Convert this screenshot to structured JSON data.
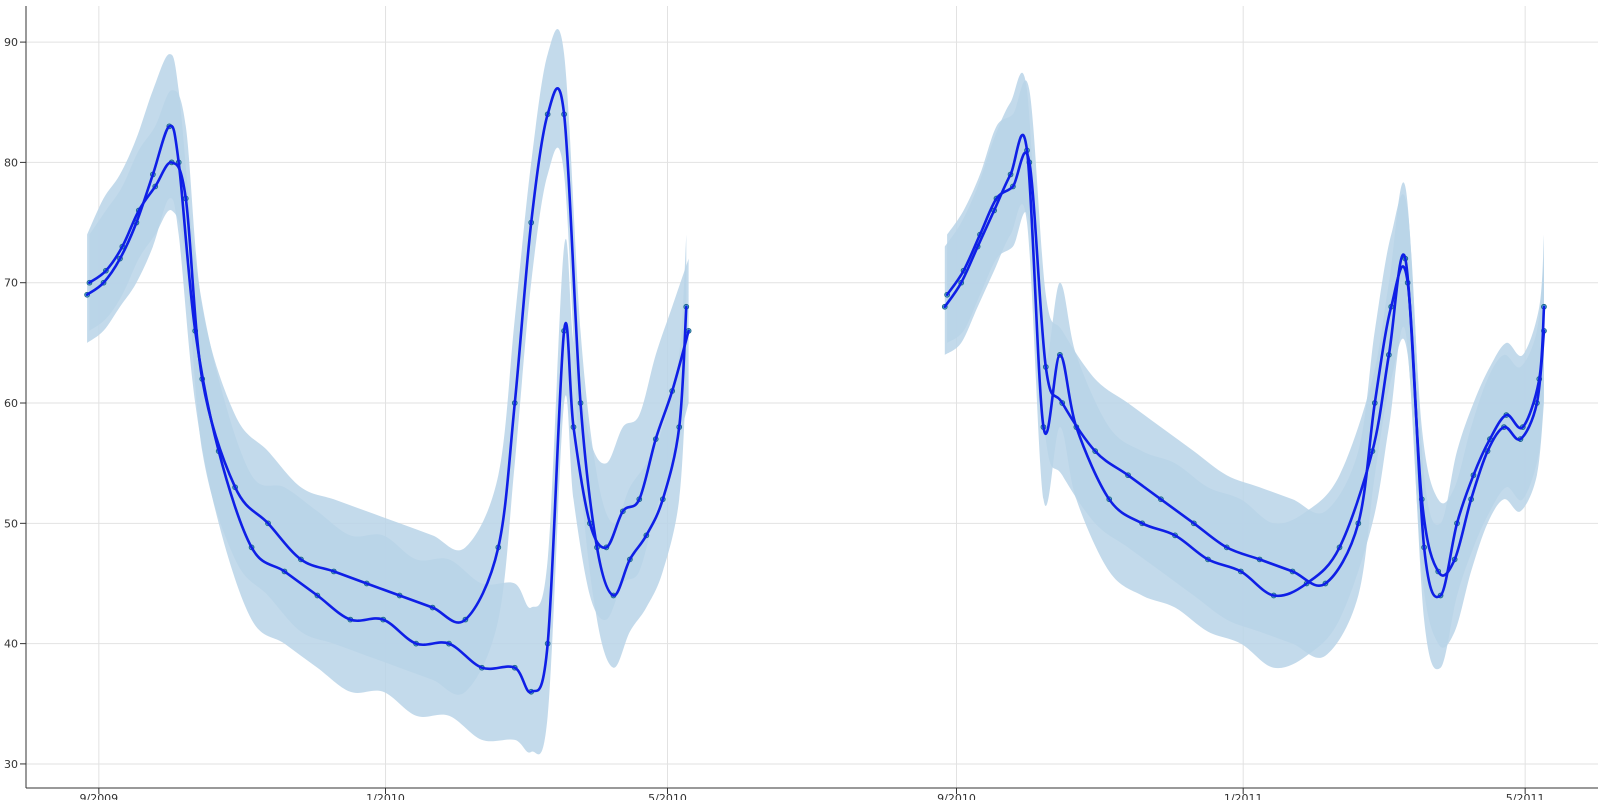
{
  "chart_data": {
    "type": "line",
    "title": "",
    "xlabel": "",
    "ylabel": "",
    "xlim": [
      "2009-08-01",
      "2011-06-01"
    ],
    "ylim": [
      28,
      93
    ],
    "grid": true,
    "x_ticks": [
      {
        "date": "2009-09-01",
        "label": "9/2009"
      },
      {
        "date": "2010-01-01",
        "label": "1/2010"
      },
      {
        "date": "2010-05-01",
        "label": "5/2010"
      },
      {
        "date": "2010-09-01",
        "label": "9/2010"
      },
      {
        "date": "2011-01-01",
        "label": "1/2011"
      },
      {
        "date": "2011-05-01",
        "label": "5/2011"
      }
    ],
    "y_ticks": [
      30,
      40,
      50,
      60,
      70,
      80,
      90
    ],
    "colors": {
      "line": "#0f1fe6",
      "band": "#b8d3e8",
      "point_fill": "#5ab4c6",
      "point_stroke": "#1b5f8c"
    },
    "series": [
      {
        "x": [
          "2009-08-27",
          "2009-09-03",
          "2009-09-10",
          "2009-09-17",
          "2009-09-24",
          "2009-10-01",
          "2009-10-05",
          "2009-10-12",
          "2009-10-22",
          "2009-11-05",
          "2009-11-19",
          "2009-12-03",
          "2009-12-17",
          "2009-12-31",
          "2010-01-14",
          "2010-01-28",
          "2010-02-11",
          "2010-02-25",
          "2010-03-04",
          "2010-03-11",
          "2010-03-18",
          "2010-03-22",
          "2010-03-29",
          "2010-04-05",
          "2010-04-12",
          "2010-04-19",
          "2010-04-26",
          "2010-05-03",
          "2010-05-10"
        ],
        "values": [
          69,
          70,
          72,
          75,
          79,
          83,
          80,
          66,
          56,
          48,
          46,
          44,
          42,
          42,
          40,
          40,
          38,
          38,
          36,
          40,
          66,
          58,
          50,
          48,
          51,
          52,
          57,
          61,
          66
        ],
        "band": [
          [
            65,
            74
          ],
          [
            66,
            77
          ],
          [
            68,
            79
          ],
          [
            70,
            82
          ],
          [
            73,
            86
          ],
          [
            77,
            89
          ],
          [
            74,
            86
          ],
          [
            60,
            72
          ],
          [
            50,
            62
          ],
          [
            42,
            54
          ],
          [
            40,
            53
          ],
          [
            38,
            51
          ],
          [
            36,
            49
          ],
          [
            36,
            49
          ],
          [
            34,
            47
          ],
          [
            34,
            47
          ],
          [
            32,
            45
          ],
          [
            32,
            45
          ],
          [
            31,
            43
          ],
          [
            34,
            47
          ],
          [
            60,
            73
          ],
          [
            52,
            65
          ],
          [
            44,
            57
          ],
          [
            42,
            55
          ],
          [
            45,
            58
          ],
          [
            46,
            59
          ],
          [
            51,
            64
          ],
          [
            55,
            68
          ],
          [
            60,
            72
          ]
        ]
      },
      {
        "x": [
          "2009-08-28",
          "2009-09-04",
          "2009-09-11",
          "2009-09-18",
          "2009-09-25",
          "2009-10-02",
          "2009-10-08",
          "2009-10-15",
          "2009-10-29",
          "2009-11-12",
          "2009-11-26",
          "2009-12-10",
          "2009-12-24",
          "2010-01-07",
          "2010-01-21",
          "2010-02-04",
          "2010-02-18",
          "2010-02-25",
          "2010-03-04",
          "2010-03-11",
          "2010-03-18",
          "2010-03-25",
          "2010-04-01",
          "2010-04-08",
          "2010-04-15",
          "2010-04-22",
          "2010-04-29",
          "2010-05-06",
          "2010-05-09"
        ],
        "values": [
          70,
          71,
          73,
          76,
          78,
          80,
          77,
          62,
          53,
          50,
          47,
          46,
          45,
          44,
          43,
          42,
          48,
          60,
          75,
          84,
          84,
          60,
          48,
          44,
          47,
          49,
          52,
          58,
          68
        ],
        "band": [
          [
            66,
            74
          ],
          [
            67,
            76
          ],
          [
            69,
            78
          ],
          [
            72,
            81
          ],
          [
            74,
            83
          ],
          [
            76,
            86
          ],
          [
            72,
            83
          ],
          [
            56,
            68
          ],
          [
            47,
            59
          ],
          [
            44,
            56
          ],
          [
            41,
            53
          ],
          [
            40,
            52
          ],
          [
            39,
            51
          ],
          [
            38,
            50
          ],
          [
            37,
            49
          ],
          [
            36,
            48
          ],
          [
            42,
            54
          ],
          [
            55,
            67
          ],
          [
            70,
            80
          ],
          [
            79,
            89
          ],
          [
            79,
            89
          ],
          [
            54,
            66
          ],
          [
            42,
            54
          ],
          [
            38,
            50
          ],
          [
            41,
            53
          ],
          [
            43,
            55
          ],
          [
            46,
            58
          ],
          [
            52,
            64
          ],
          [
            62,
            74
          ]
        ]
      },
      {
        "x": [
          "2010-08-27",
          "2010-09-03",
          "2010-09-10",
          "2010-09-17",
          "2010-09-24",
          "2010-10-01",
          "2010-10-08",
          "2010-10-15",
          "2010-10-22",
          "2010-11-05",
          "2010-11-19",
          "2010-12-03",
          "2010-12-17",
          "2010-12-31",
          "2011-01-14",
          "2011-01-28",
          "2011-02-11",
          "2011-02-25",
          "2011-03-04",
          "2011-03-11",
          "2011-03-18",
          "2011-03-25",
          "2011-04-01",
          "2011-04-08",
          "2011-04-15",
          "2011-04-22",
          "2011-04-29",
          "2011-05-06",
          "2011-05-09"
        ],
        "values": [
          68,
          70,
          73,
          76,
          79,
          81,
          58,
          64,
          58,
          52,
          50,
          49,
          47,
          46,
          44,
          45,
          48,
          56,
          64,
          72,
          52,
          46,
          47,
          52,
          56,
          58,
          57,
          60,
          66
        ],
        "band": [
          [
            64,
            73
          ],
          [
            65,
            75
          ],
          [
            68,
            78
          ],
          [
            71,
            82
          ],
          [
            74,
            85
          ],
          [
            75,
            86
          ],
          [
            52,
            64
          ],
          [
            58,
            70
          ],
          [
            52,
            64
          ],
          [
            46,
            58
          ],
          [
            44,
            56
          ],
          [
            43,
            55
          ],
          [
            41,
            53
          ],
          [
            40,
            52
          ],
          [
            38,
            50
          ],
          [
            39,
            51
          ],
          [
            42,
            54
          ],
          [
            50,
            62
          ],
          [
            58,
            70
          ],
          [
            66,
            78
          ],
          [
            46,
            58
          ],
          [
            40,
            52
          ],
          [
            41,
            53
          ],
          [
            46,
            58
          ],
          [
            50,
            62
          ],
          [
            52,
            64
          ],
          [
            51,
            63
          ],
          [
            54,
            66
          ],
          [
            60,
            72
          ]
        ]
      },
      {
        "x": [
          "2010-08-28",
          "2010-09-04",
          "2010-09-11",
          "2010-09-18",
          "2010-09-25",
          "2010-10-02",
          "2010-10-09",
          "2010-10-16",
          "2010-10-30",
          "2010-11-13",
          "2010-11-27",
          "2010-12-11",
          "2010-12-25",
          "2011-01-08",
          "2011-01-22",
          "2011-02-05",
          "2011-02-19",
          "2011-02-26",
          "2011-03-05",
          "2011-03-12",
          "2011-03-19",
          "2011-03-26",
          "2011-04-02",
          "2011-04-09",
          "2011-04-16",
          "2011-04-23",
          "2011-04-30",
          "2011-05-07",
          "2011-05-09"
        ],
        "values": [
          69,
          71,
          74,
          77,
          78,
          80,
          63,
          60,
          56,
          54,
          52,
          50,
          48,
          47,
          46,
          45,
          50,
          60,
          68,
          70,
          48,
          44,
          50,
          54,
          57,
          59,
          58,
          62,
          68
        ],
        "band": [
          [
            65,
            74
          ],
          [
            66,
            76
          ],
          [
            69,
            79
          ],
          [
            72,
            83
          ],
          [
            73,
            84
          ],
          [
            75,
            86
          ],
          [
            57,
            69
          ],
          [
            54,
            66
          ],
          [
            50,
            62
          ],
          [
            48,
            60
          ],
          [
            46,
            58
          ],
          [
            44,
            56
          ],
          [
            42,
            54
          ],
          [
            41,
            53
          ],
          [
            40,
            52
          ],
          [
            39,
            51
          ],
          [
            44,
            56
          ],
          [
            54,
            66
          ],
          [
            62,
            74
          ],
          [
            64,
            76
          ],
          [
            42,
            54
          ],
          [
            38,
            50
          ],
          [
            44,
            56
          ],
          [
            48,
            60
          ],
          [
            51,
            63
          ],
          [
            53,
            65
          ],
          [
            52,
            64
          ],
          [
            56,
            68
          ],
          [
            62,
            74
          ]
        ]
      }
    ]
  }
}
